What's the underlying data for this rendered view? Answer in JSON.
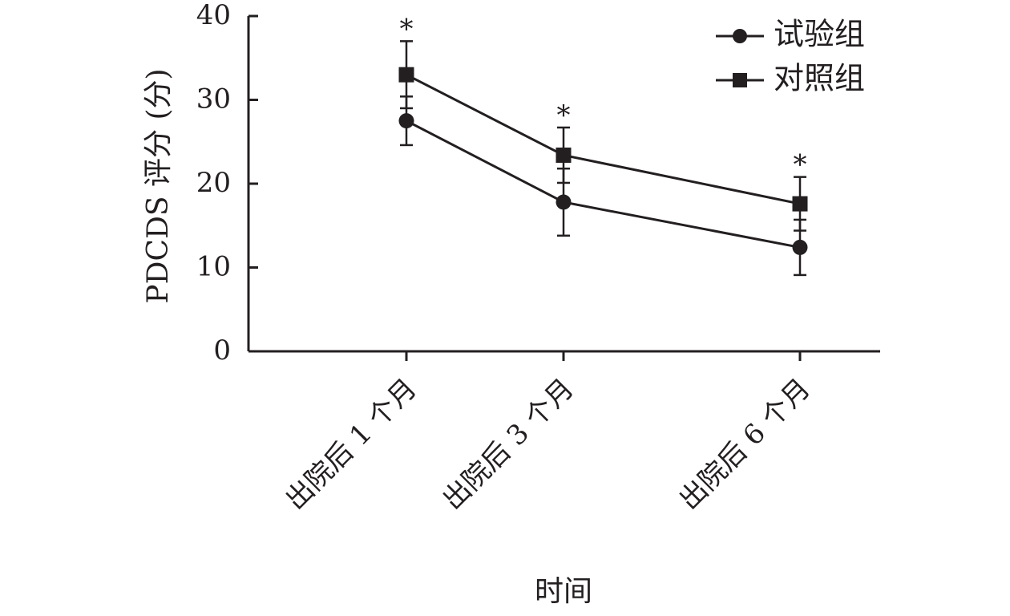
{
  "chart_data": {
    "type": "line",
    "categories": [
      "出院后 1 个月",
      "出院后 3 个月",
      "出院后 6 个月"
    ],
    "series": [
      {
        "name": "试验组",
        "marker": "circle",
        "values": [
          27.5,
          17.8,
          12.4
        ],
        "error": [
          2.9,
          4.0,
          3.3
        ]
      },
      {
        "name": "对照组",
        "marker": "square",
        "values": [
          33.0,
          23.4,
          17.6
        ],
        "error": [
          4.0,
          3.3,
          3.2
        ]
      }
    ],
    "significance": [
      "*",
      "*",
      "*"
    ],
    "xlabel": "时间",
    "ylabel": "PDCDS 评分 (分)",
    "ylim": [
      0,
      40
    ],
    "yticks": [
      0,
      10,
      20,
      30,
      40
    ],
    "grid": false,
    "legend_position": "top-right",
    "colors": {
      "ink": "#231f20"
    }
  }
}
